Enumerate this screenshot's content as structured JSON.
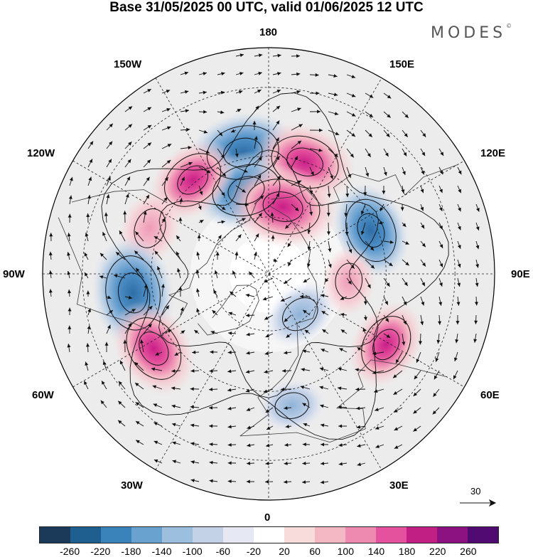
{
  "title": "Base 31/05/2025 00 UTC, valid 01/06/2025 12 UTC",
  "brand": "MODES",
  "brand_mark": "©",
  "longitude_labels": {
    "lon_180": "180",
    "lon_150e": "150E",
    "lon_120e": "120E",
    "lon_90e": "90E",
    "lon_60e": "60E",
    "lon_30e": "30E",
    "lon_0": "0",
    "lon_30w": "30W",
    "lon_60w": "60W",
    "lon_90w": "90W",
    "lon_120w": "120W",
    "lon_150w": "150W"
  },
  "reference_vector_label": "30",
  "colorbar": {
    "colors": [
      "#1b3a5a",
      "#1f5f8f",
      "#3a82ba",
      "#6aa2cf",
      "#9cbedf",
      "#c4d2e8",
      "#e6e8f3",
      "#ffffff",
      "#f8dcdc",
      "#f4b8c4",
      "#ee8ab0",
      "#e4519c",
      "#c21f85",
      "#8d1281",
      "#520a73"
    ],
    "tick_labels": [
      "-260",
      "-220",
      "-180",
      "-140",
      "-100",
      "-60",
      "-20",
      "20",
      "60",
      "100",
      "140",
      "180",
      "220",
      "260"
    ]
  },
  "anomaly_centers": [
    {
      "lon": -168,
      "lat": 48,
      "value": -220
    },
    {
      "lon": -165,
      "lat": 60,
      "value": -200
    },
    {
      "lon": 162,
      "lat": 50,
      "value": 200
    },
    {
      "lon": 168,
      "lat": 66,
      "value": 230
    },
    {
      "lon": -141,
      "lat": 49,
      "value": 170
    },
    {
      "lon": -111,
      "lat": 47,
      "value": 120
    },
    {
      "lon": 113,
      "lat": 52,
      "value": -180
    },
    {
      "lon": -82,
      "lat": 44,
      "value": -230
    },
    {
      "lon": -57,
      "lat": 44,
      "value": 190
    },
    {
      "lon": 59,
      "lat": 44,
      "value": 160
    },
    {
      "lon": 38,
      "lat": 72,
      "value": -110
    },
    {
      "lon": 85,
      "lat": 62,
      "value": 90
    },
    {
      "lon": 10,
      "lat": 45,
      "value": -80
    }
  ]
}
